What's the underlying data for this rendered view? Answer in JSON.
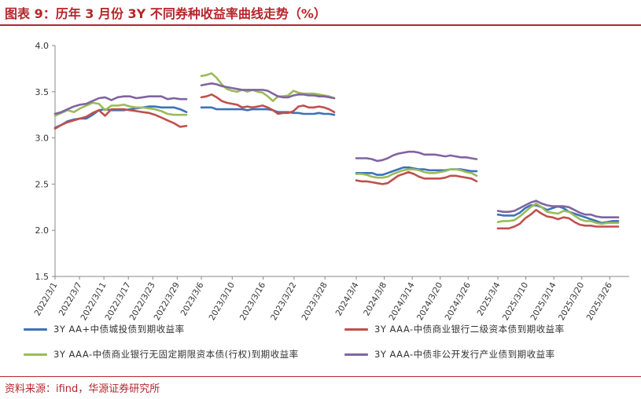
{
  "header": {
    "title": "图表 9：历年 3 月份 3Y 不同券种收益率曲线走势（%）"
  },
  "footer": {
    "source": "资料来源：ifind，华源证券研究所"
  },
  "chart_data": {
    "type": "line",
    "ylim": [
      1.5,
      4.0
    ],
    "yticks": [
      "1.5",
      "2.0",
      "2.5",
      "3.0",
      "3.5",
      "4.0"
    ],
    "grid": false,
    "legend_position": "bottom",
    "segments": [
      {
        "ticks": [
          "2022/3/1",
          "2022/3/7",
          "2022/3/11",
          "2022/3/17",
          "2022/3/23",
          "2022/3/29"
        ]
      },
      {
        "ticks": [
          "2023/3/6",
          "2023/3/10",
          "2023/3/16",
          "2023/3/22",
          "2023/3/28"
        ]
      },
      {
        "ticks": [
          "2024/3/4",
          "2024/3/8",
          "2024/3/14",
          "2024/3/20",
          "2024/3/26"
        ]
      },
      {
        "ticks": [
          "2025/3/4",
          "2025/3/10",
          "2025/3/14",
          "2025/3/20",
          "2025/3/26"
        ]
      }
    ],
    "series": [
      {
        "name": "3Y AA+中债城投债到期收益率",
        "color": "#3b73b9",
        "segments": [
          [
            3.11,
            3.14,
            3.18,
            3.2,
            3.21,
            3.21,
            3.25,
            3.3,
            3.31,
            3.3,
            3.3,
            3.3,
            3.31,
            3.32,
            3.33,
            3.34,
            3.34,
            3.33,
            3.33,
            3.33,
            3.31,
            3.28
          ],
          [
            3.33,
            3.33,
            3.33,
            3.31,
            3.31,
            3.31,
            3.31,
            3.31,
            3.31,
            3.3,
            3.31,
            3.31,
            3.31,
            3.31,
            3.3,
            3.28,
            3.28,
            3.28,
            3.27,
            3.27,
            3.26,
            3.26,
            3.26,
            3.27,
            3.26,
            3.26,
            3.25
          ],
          [
            2.62,
            2.62,
            2.62,
            2.62,
            2.6,
            2.6,
            2.62,
            2.64,
            2.66,
            2.68,
            2.68,
            2.67,
            2.66,
            2.66,
            2.65,
            2.65,
            2.65,
            2.65,
            2.66,
            2.66,
            2.66,
            2.65,
            2.64,
            2.64
          ],
          [
            2.17,
            2.16,
            2.16,
            2.16,
            2.19,
            2.24,
            2.27,
            2.27,
            2.25,
            2.22,
            2.24,
            2.26,
            2.24,
            2.2,
            2.18,
            2.16,
            2.14,
            2.12,
            2.1,
            2.08,
            2.09,
            2.1,
            2.1
          ]
        ]
      },
      {
        "name": "3Y AAA-中债商业银行二级资本债到期收益率",
        "color": "#c0504d",
        "segments": [
          [
            3.1,
            3.14,
            3.17,
            3.19,
            3.21,
            3.23,
            3.27,
            3.3,
            3.24,
            3.31,
            3.31,
            3.31,
            3.3,
            3.29,
            3.28,
            3.27,
            3.25,
            3.22,
            3.19,
            3.16,
            3.12,
            3.13
          ],
          [
            3.44,
            3.45,
            3.47,
            3.44,
            3.4,
            3.38,
            3.37,
            3.36,
            3.33,
            3.34,
            3.33,
            3.34,
            3.35,
            3.33,
            3.3,
            3.26,
            3.27,
            3.27,
            3.29,
            3.34,
            3.35,
            3.33,
            3.33,
            3.34,
            3.33,
            3.31,
            3.28
          ],
          [
            2.54,
            2.53,
            2.53,
            2.52,
            2.51,
            2.5,
            2.51,
            2.55,
            2.59,
            2.61,
            2.63,
            2.61,
            2.58,
            2.56,
            2.56,
            2.56,
            2.56,
            2.57,
            2.59,
            2.59,
            2.58,
            2.57,
            2.56,
            2.53
          ],
          [
            2.02,
            2.02,
            2.02,
            2.04,
            2.07,
            2.13,
            2.17,
            2.22,
            2.18,
            2.15,
            2.14,
            2.12,
            2.14,
            2.13,
            2.09,
            2.06,
            2.05,
            2.05,
            2.04,
            2.04,
            2.04,
            2.04,
            2.04
          ]
        ]
      },
      {
        "name": "3Y AAA-中债商业银行无固定期限资本债(行权)到期收益率",
        "color": "#9bbb59",
        "segments": [
          [
            3.24,
            3.27,
            3.3,
            3.28,
            3.32,
            3.35,
            3.38,
            3.37,
            3.3,
            3.35,
            3.35,
            3.36,
            3.34,
            3.33,
            3.33,
            3.32,
            3.31,
            3.29,
            3.26,
            3.25,
            3.25,
            3.25
          ],
          [
            3.67,
            3.68,
            3.7,
            3.65,
            3.58,
            3.53,
            3.51,
            3.5,
            3.52,
            3.5,
            3.52,
            3.5,
            3.49,
            3.45,
            3.4,
            3.45,
            3.45,
            3.46,
            3.51,
            3.49,
            3.48,
            3.48,
            3.48,
            3.47,
            3.46,
            3.45,
            3.43
          ],
          [
            2.61,
            2.61,
            2.6,
            2.58,
            2.57,
            2.57,
            2.58,
            2.61,
            2.63,
            2.65,
            2.66,
            2.66,
            2.65,
            2.63,
            2.62,
            2.62,
            2.63,
            2.64,
            2.66,
            2.66,
            2.65,
            2.63,
            2.62,
            2.59
          ],
          [
            2.09,
            2.1,
            2.1,
            2.11,
            2.15,
            2.2,
            2.25,
            2.29,
            2.25,
            2.2,
            2.19,
            2.18,
            2.21,
            2.2,
            2.16,
            2.12,
            2.1,
            2.1,
            2.08,
            2.07,
            2.08,
            2.08,
            2.08
          ]
        ]
      },
      {
        "name": "3Y AAA-中债非公开发行产业债到期收益率",
        "color": "#8064a2",
        "segments": [
          [
            3.26,
            3.28,
            3.31,
            3.34,
            3.36,
            3.37,
            3.4,
            3.43,
            3.44,
            3.41,
            3.44,
            3.45,
            3.45,
            3.43,
            3.44,
            3.45,
            3.45,
            3.45,
            3.42,
            3.43,
            3.42,
            3.42
          ],
          [
            3.57,
            3.58,
            3.59,
            3.58,
            3.56,
            3.55,
            3.54,
            3.53,
            3.52,
            3.52,
            3.52,
            3.52,
            3.52,
            3.51,
            3.48,
            3.45,
            3.44,
            3.44,
            3.46,
            3.47,
            3.47,
            3.46,
            3.46,
            3.45,
            3.45,
            3.44,
            3.43
          ],
          [
            2.78,
            2.78,
            2.78,
            2.77,
            2.75,
            2.76,
            2.78,
            2.81,
            2.83,
            2.84,
            2.85,
            2.85,
            2.84,
            2.82,
            2.82,
            2.82,
            2.81,
            2.8,
            2.81,
            2.8,
            2.79,
            2.79,
            2.78,
            2.77
          ],
          [
            2.21,
            2.2,
            2.2,
            2.21,
            2.24,
            2.27,
            2.3,
            2.32,
            2.29,
            2.27,
            2.26,
            2.26,
            2.26,
            2.25,
            2.22,
            2.19,
            2.17,
            2.17,
            2.15,
            2.14,
            2.14,
            2.14,
            2.14
          ]
        ]
      }
    ]
  }
}
